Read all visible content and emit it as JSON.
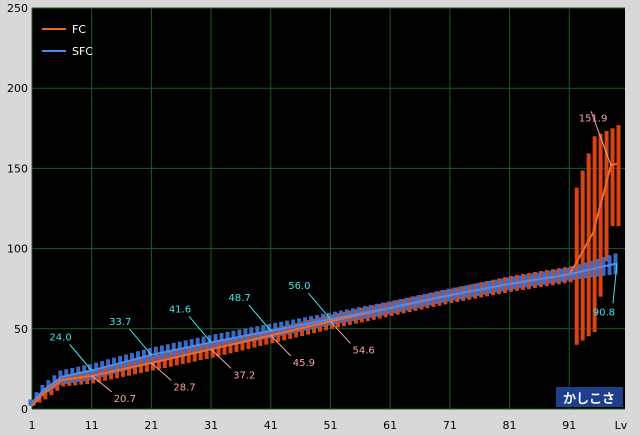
{
  "chart_data": {
    "type": "line",
    "title": "",
    "xlabel": "Lv",
    "ylabel": "",
    "xlim": [
      1,
      99
    ],
    "ylim": [
      0,
      250
    ],
    "grid": true,
    "legend": "top-left",
    "watermark": "かしこさ",
    "yticks": [
      0,
      50,
      100,
      150,
      200,
      250
    ],
    "xticks": [
      1,
      11,
      21,
      31,
      41,
      51,
      61,
      71,
      81,
      91
    ],
    "colors": {
      "fc": "#f06a28",
      "fc_range": "#d94412",
      "sfc": "#4a8cf0",
      "sfc_range": "#3f6fcc",
      "plot_bg": "#000000",
      "grid": "#1f5a1f",
      "annotation_fc": "#f4a6a0",
      "annotation_sfc": "#40e6e6",
      "watermark_bg": "#1e3f8a"
    },
    "series": [
      {
        "name": "FC",
        "x": [
          1,
          3,
          6,
          11,
          21,
          31,
          41,
          51,
          61,
          71,
          81,
          91,
          92,
          95,
          98,
          99
        ],
        "values": [
          2,
          10,
          18,
          20.7,
          28.7,
          37.2,
          45.9,
          54.6,
          63,
          71,
          78,
          84,
          90,
          110,
          151.9,
          153
        ],
        "range_low": [
          2,
          6,
          14,
          16,
          24,
          32,
          41,
          50,
          58,
          66,
          73,
          79,
          40,
          48,
          114,
          114
        ],
        "range_high": [
          4,
          13,
          21,
          25,
          33,
          42,
          50,
          59,
          67,
          75,
          83,
          89,
          138,
          170,
          175,
          177
        ]
      },
      {
        "name": "SFC",
        "x": [
          1,
          3,
          6,
          11,
          21,
          31,
          41,
          51,
          61,
          71,
          81,
          91,
          99
        ],
        "values": [
          4,
          12,
          20,
          24.0,
          33.7,
          41.6,
          48.7,
          56.0,
          63,
          71,
          78,
          84,
          90.8
        ],
        "range_low": [
          2,
          8,
          15,
          18,
          28,
          37,
          44,
          52,
          59,
          67,
          74,
          80,
          84
        ],
        "range_high": [
          6,
          15,
          24,
          28,
          38,
          46,
          53,
          60,
          67,
          75,
          82,
          88,
          97
        ]
      }
    ],
    "annotations": {
      "fc": [
        {
          "x": 11,
          "value": 20.7,
          "label": "20.7"
        },
        {
          "x": 21,
          "value": 28.7,
          "label": "28.7"
        },
        {
          "x": 31,
          "value": 37.2,
          "label": "37.2"
        },
        {
          "x": 41,
          "value": 45.9,
          "label": "45.9"
        },
        {
          "x": 51,
          "value": 54.6,
          "label": "54.6"
        },
        {
          "x": 98,
          "value": 151.9,
          "label": "151.9"
        }
      ],
      "sfc": [
        {
          "x": 11,
          "value": 24.0,
          "label": "24.0"
        },
        {
          "x": 21,
          "value": 33.7,
          "label": "33.7"
        },
        {
          "x": 31,
          "value": 41.6,
          "label": "41.6"
        },
        {
          "x": 41,
          "value": 48.7,
          "label": "48.7"
        },
        {
          "x": 51,
          "value": 56.0,
          "label": "56.0"
        },
        {
          "x": 99,
          "value": 90.8,
          "label": "90.8"
        }
      ]
    }
  }
}
